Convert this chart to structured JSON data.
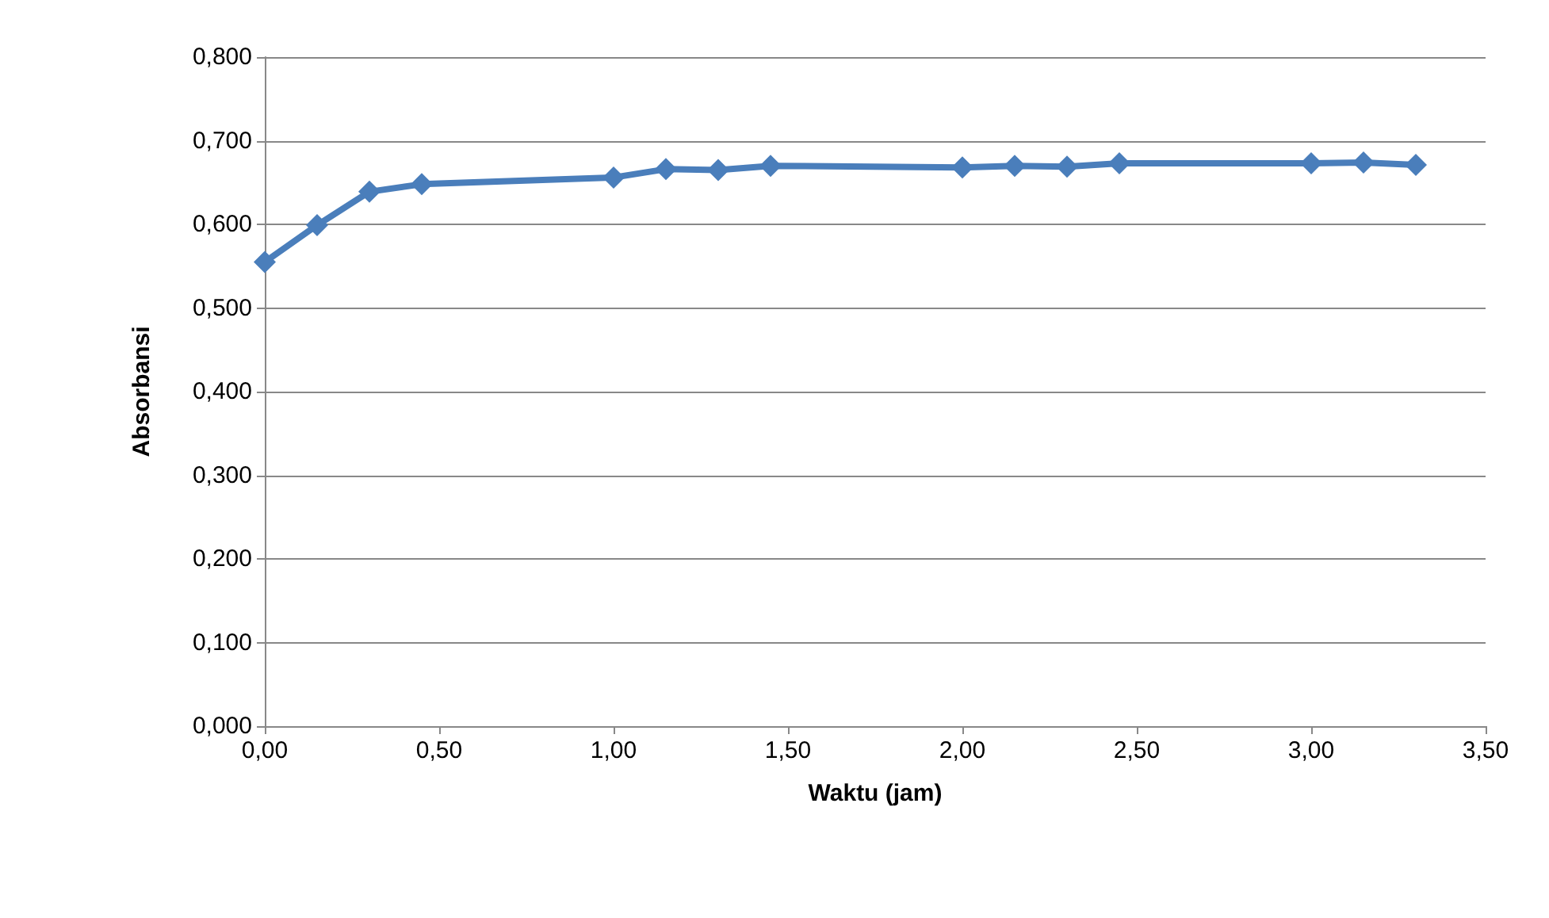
{
  "chart_data": {
    "type": "line",
    "xlabel": "Waktu (jam)",
    "ylabel": "Absorbansi",
    "x": [
      0,
      0.15,
      0.3,
      0.45,
      1,
      1.15,
      1.3,
      1.45,
      2,
      2.15,
      2.3,
      2.45,
      3,
      3.15,
      3.3
    ],
    "series": [
      {
        "color": "#4a7ebb",
        "values": [
          0.555,
          0.599,
          0.639,
          0.648,
          0.656,
          0.666,
          0.665,
          0.67,
          0.668,
          0.67,
          0.669,
          0.673,
          0.673,
          0.674,
          0.671
        ]
      }
    ],
    "xlim": [
      0,
      3.5
    ],
    "xticks": [
      {
        "value": 0,
        "label": "0,00"
      },
      {
        "value": 0.5,
        "label": "0,50"
      },
      {
        "value": 1,
        "label": "1,00"
      },
      {
        "value": 1.5,
        "label": "1,50"
      },
      {
        "value": 2,
        "label": "2,00"
      },
      {
        "value": 2.5,
        "label": "2,50"
      },
      {
        "value": 3,
        "label": "3,00"
      },
      {
        "value": 3.5,
        "label": "3,50"
      }
    ],
    "ylim": [
      0,
      0.8
    ],
    "yticks": [
      {
        "value": 0,
        "label": "0,000"
      },
      {
        "value": 0.1,
        "label": "0,100"
      },
      {
        "value": 0.2,
        "label": "0,200"
      },
      {
        "value": 0.3,
        "label": "0,300"
      },
      {
        "value": 0.4,
        "label": "0,400"
      },
      {
        "value": 0.5,
        "label": "0,500"
      },
      {
        "value": 0.6,
        "label": "0,600"
      },
      {
        "value": 0.7,
        "label": "0,700"
      },
      {
        "value": 0.8,
        "label": "0,800"
      }
    ],
    "grid": "y",
    "marker": "diamond",
    "line_style": "solid"
  }
}
